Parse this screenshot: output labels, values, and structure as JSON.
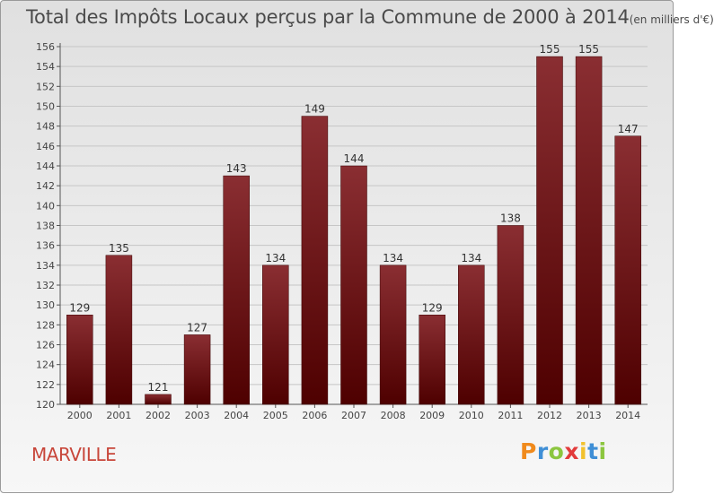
{
  "title": {
    "main": "Total des Impôts Locaux perçus par la Commune de 2000 à 2014",
    "unit": "(en milliers d'€)"
  },
  "commune_name": "MARVILLE",
  "logo": {
    "text": "Proxiti",
    "letters": [
      "P",
      "r",
      "o",
      "x",
      "i",
      "t",
      "i"
    ],
    "colors": [
      "#f08a1c",
      "#3f8fd6",
      "#8cc63f",
      "#e23b3b",
      "#f2c12e",
      "#3f8fd6",
      "#8cc63f"
    ]
  },
  "chart_data": {
    "type": "bar",
    "title": "Total des Impôts Locaux perçus par la Commune de 2000 à 2014 (en milliers d'€)",
    "xlabel": "",
    "ylabel": "",
    "categories": [
      "2000",
      "2001",
      "2002",
      "2003",
      "2004",
      "2005",
      "2006",
      "2007",
      "2008",
      "2009",
      "2010",
      "2011",
      "2012",
      "2013",
      "2014"
    ],
    "values": [
      129,
      135,
      121,
      127,
      143,
      134,
      149,
      144,
      134,
      129,
      134,
      138,
      155,
      155,
      147
    ],
    "value_labels": [
      "129",
      "135",
      "121",
      "127",
      "143",
      "134",
      "149",
      "144",
      "134",
      "129",
      "134",
      "138",
      "155",
      "155",
      "147"
    ],
    "ylim": [
      120,
      156
    ],
    "yticks": [
      120,
      122,
      124,
      126,
      128,
      130,
      132,
      134,
      136,
      138,
      140,
      142,
      144,
      146,
      148,
      150,
      152,
      154,
      156
    ],
    "ytick_labels": [
      "120",
      "122",
      "124",
      "126",
      "128",
      "130",
      "132",
      "134",
      "136",
      "138",
      "140",
      "142",
      "144",
      "146",
      "148",
      "150",
      "152",
      "154",
      "156"
    ],
    "grid": true,
    "bar_color_top": "#8a2e32",
    "bar_color_bottom": "#4e0000"
  }
}
